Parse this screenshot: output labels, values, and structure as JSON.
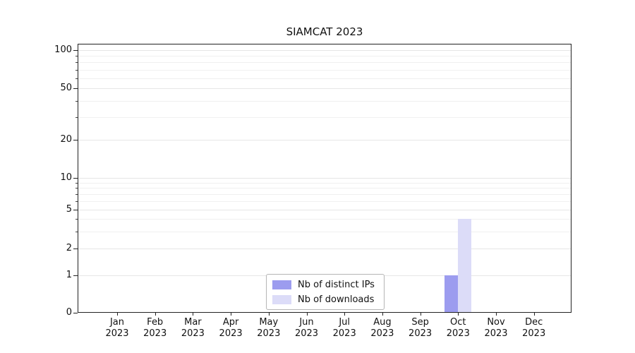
{
  "chart_data": {
    "type": "bar",
    "title": "SIAMCAT 2023",
    "months": [
      "Jan",
      "Feb",
      "Mar",
      "Apr",
      "May",
      "Jun",
      "Jul",
      "Aug",
      "Sep",
      "Oct",
      "Nov",
      "Dec"
    ],
    "year": "2023",
    "series": [
      {
        "name": "Nb of distinct IPs",
        "color": "#9c9cef",
        "values": [
          0,
          0,
          0,
          0,
          0,
          0,
          0,
          0,
          0,
          1,
          0,
          0
        ]
      },
      {
        "name": "Nb of downloads",
        "color": "#dcdcf8",
        "values": [
          0,
          0,
          0,
          0,
          0,
          0,
          0,
          0,
          0,
          4,
          0,
          0
        ]
      }
    ],
    "yscale": "symlog",
    "yticks": [
      0,
      1,
      2,
      5,
      10,
      20,
      50,
      100
    ],
    "ytick_labels": [
      "0",
      "1",
      "2",
      "5",
      "10",
      "20",
      "50",
      "100"
    ],
    "minor_gridlines": [
      3,
      4,
      6,
      7,
      8,
      9,
      30,
      40,
      60,
      70,
      80,
      90
    ],
    "ylim": [
      0,
      114
    ],
    "grid": "horizontal",
    "legend_position": "bottom-center",
    "axis_color": "#222222",
    "background_color": "#ffffff"
  }
}
